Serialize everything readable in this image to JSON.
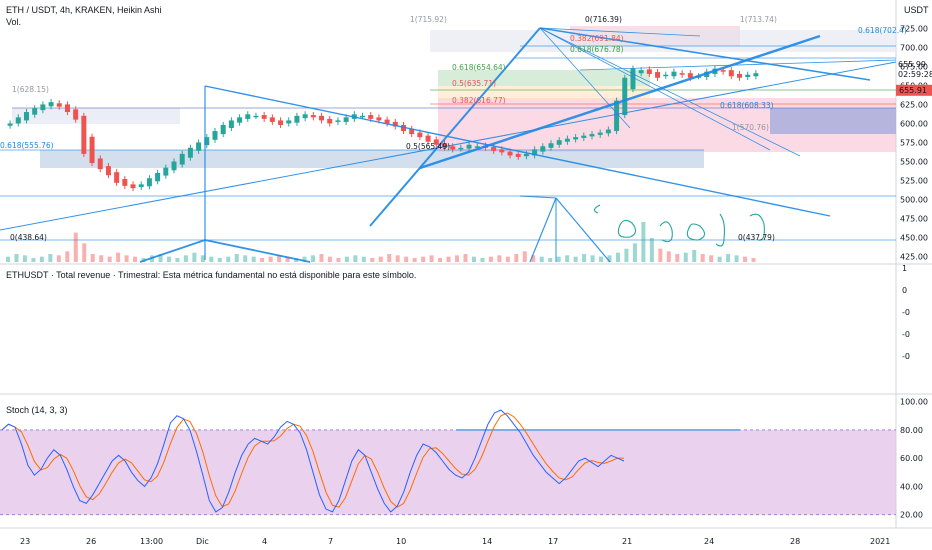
{
  "header": {
    "symbol_line": "ETH / USDT, 4h, KRAKEN, Heikin Ashi",
    "vol_label": "Vol.",
    "currency": "USDT"
  },
  "revenue_pane": {
    "text": "ETHUSDT · Total revenue · Trimestral: Esta métrica fundamental no está disponible para este símbolo."
  },
  "stoch_pane": {
    "label": "Stoch (14, 3, 3)"
  },
  "colors": {
    "up": "#26a69a",
    "down": "#ef5350",
    "drawing": "#1e88e5",
    "k_line": "#2962ff",
    "d_line": "#ff6d00",
    "stoch_band": "#e1bee7",
    "price_tag": "#ef5350"
  },
  "chart_data": [
    {
      "type": "candlestick",
      "style": "Heikin Ashi",
      "y_axis": {
        "ticks": [
          "725.00",
          "700.00",
          "675.00",
          "650.00",
          "625.00",
          "600.00",
          "575.00",
          "550.00",
          "525.00",
          "500.00",
          "475.00",
          "450.00",
          "425.00"
        ],
        "range": [
          418,
          728
        ],
        "current_price": "655.91",
        "timer": "02:59:28",
        "extra_label": "655.99"
      },
      "x_axis": {
        "labels": [
          "23",
          "26",
          "13:00",
          "Dic",
          "4",
          "7",
          "10",
          "14",
          "17",
          "21",
          "24",
          "28",
          "2021"
        ]
      },
      "close_series": [
        600,
        608,
        615,
        620,
        625,
        628,
        622,
        615,
        605,
        560,
        548,
        540,
        532,
        522,
        518,
        515,
        520,
        528,
        535,
        542,
        550,
        560,
        568,
        575,
        582,
        590,
        598,
        604,
        608,
        612,
        610,
        606,
        602,
        598,
        604,
        610,
        612,
        608,
        604,
        600,
        604,
        608,
        612,
        610,
        606,
        604,
        600,
        596,
        590,
        586,
        582,
        576,
        572,
        568,
        566,
        568,
        572,
        570,
        568,
        564,
        562,
        558,
        556,
        560,
        566,
        570,
        574,
        578,
        580,
        582,
        584,
        586,
        588,
        592,
        630,
        660,
        672,
        670,
        665,
        660,
        664,
        668,
        664,
        660,
        662,
        668,
        672,
        668,
        662,
        660,
        664,
        666
      ],
      "fib_labels": [
        "1(715.92)",
        "0(716.39)",
        "1(713.74)",
        "0.382(691.84)",
        "0.618(676.78)",
        "0.618(702.4)",
        "0.618(654.64)",
        "0.5(635.71)",
        "0.382(616.77)",
        "0.618(608.33)",
        "0.5(565.49)",
        "1(628.15)",
        "0.618(555.76)",
        "0(438.64)",
        "0(437.79)",
        "1(570.76)"
      ]
    },
    {
      "type": "line",
      "name": "Stoch (14, 3, 3)",
      "y_axis": {
        "ticks": [
          "100.00",
          "80.00",
          "60.00",
          "40.00",
          "20.00"
        ],
        "range": [
          12,
          104
        ]
      },
      "band": [
        20,
        80
      ],
      "k": [
        80,
        84,
        82,
        70,
        55,
        48,
        52,
        60,
        66,
        62,
        52,
        40,
        30,
        28,
        34,
        42,
        50,
        58,
        62,
        58,
        50,
        44,
        40,
        46,
        56,
        70,
        85,
        90,
        88,
        80,
        65,
        48,
        30,
        22,
        25,
        36,
        50,
        62,
        70,
        74,
        72,
        70,
        75,
        82,
        86,
        84,
        78,
        66,
        50,
        34,
        24,
        22,
        30,
        44,
        58,
        66,
        62,
        50,
        38,
        28,
        22,
        26,
        36,
        50,
        62,
        70,
        68,
        64,
        58,
        52,
        48,
        46,
        50,
        60,
        72,
        84,
        92,
        94,
        90,
        84,
        78,
        70,
        62,
        56,
        50,
        46,
        42,
        46,
        52,
        58,
        60,
        57,
        54,
        58,
        62,
        60,
        58
      ]
    },
    {
      "type": "bar",
      "name": "Vol.",
      "values": [
        4,
        6,
        5,
        3,
        4,
        6,
        5,
        8,
        22,
        14,
        6,
        5,
        4,
        7,
        5,
        4,
        3,
        5,
        6,
        4,
        3,
        5,
        7,
        5,
        4,
        3,
        4,
        6,
        5,
        4,
        3,
        4,
        5,
        4,
        3,
        4,
        5,
        6,
        4,
        3,
        4,
        5,
        4,
        3,
        4,
        6,
        5,
        4,
        3,
        4,
        5,
        3,
        4,
        5,
        6,
        4,
        3,
        4,
        5,
        4,
        6,
        8,
        5,
        4,
        3,
        4,
        5,
        4,
        6,
        5,
        4,
        5,
        7,
        10,
        14,
        30,
        18,
        10,
        8,
        6,
        7,
        9,
        6,
        5,
        4,
        6,
        5,
        4,
        3
      ]
    },
    {
      "type": "line",
      "name": "Total revenue",
      "y_axis": {
        "ticks": [
          "1",
          "0",
          "-0",
          "-0",
          "-0"
        ]
      }
    }
  ]
}
